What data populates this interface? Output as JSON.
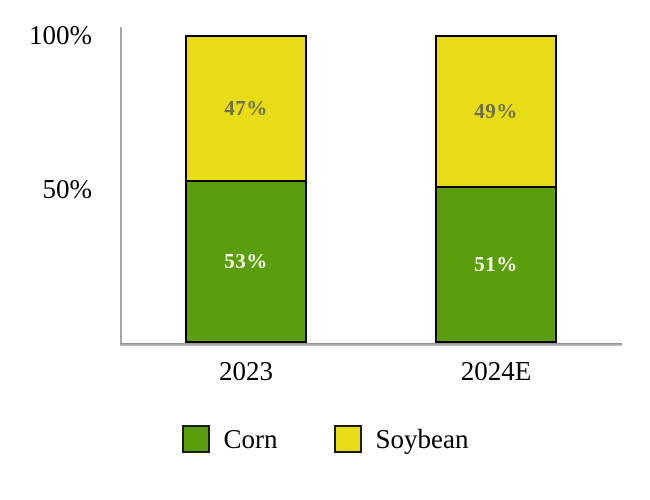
{
  "chart_data": {
    "type": "bar",
    "stacked": true,
    "categories": [
      "2023",
      "2024E"
    ],
    "series": [
      {
        "name": "Corn",
        "values": [
          53,
          51
        ],
        "labels": [
          "53%",
          "51%"
        ],
        "color": "#5a9e0c",
        "label_color": "#fbfbef"
      },
      {
        "name": "Soybean",
        "values": [
          47,
          49
        ],
        "labels": [
          "47%",
          "49%"
        ],
        "color": "#e8dc17",
        "label_color": "#6f6f49"
      }
    ],
    "yticks": [
      {
        "value": 100,
        "label": "100%"
      },
      {
        "value": 50,
        "label": "50%"
      }
    ],
    "ylim": [
      0,
      100
    ],
    "grid": false,
    "legend_position": "bottom",
    "axis_color": "#a6a6a6",
    "bar_border_color": "#000000"
  }
}
